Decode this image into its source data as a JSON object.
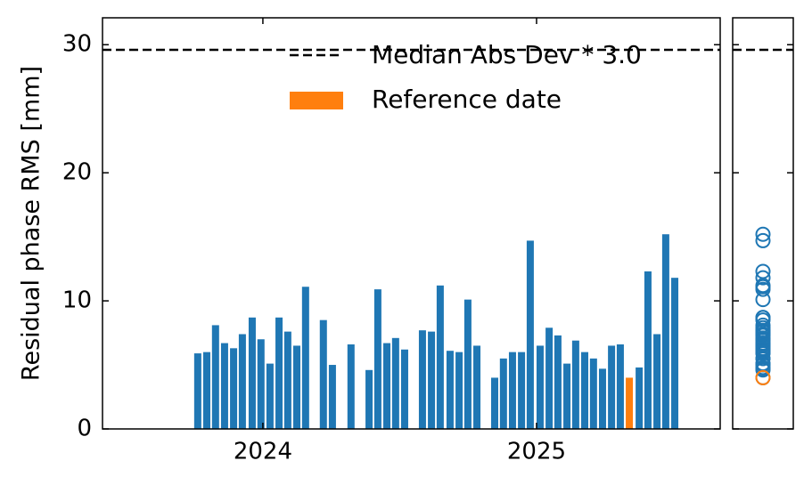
{
  "chart_data": {
    "type": "bar",
    "y_label": "Residual phase RMS [mm]",
    "xlim": [
      2023.414,
      2025.671
    ],
    "xticks": [
      2024,
      2025
    ],
    "ylim": [
      0,
      32.1
    ],
    "yticks": [
      0,
      10,
      20,
      30
    ],
    "bars": {
      "color": "#1f77b4",
      "x": [
        2023.762,
        2023.795,
        2023.827,
        2023.86,
        2023.893,
        2023.925,
        2023.961,
        2023.993,
        2024.026,
        2024.059,
        2024.091,
        2024.124,
        2024.156,
        2024.221,
        2024.254,
        2024.322,
        2024.388,
        2024.42,
        2024.453,
        2024.485,
        2024.518,
        2024.583,
        2024.616,
        2024.648,
        2024.684,
        2024.717,
        2024.749,
        2024.782,
        2024.847,
        2024.879,
        2024.912,
        2024.945,
        2024.977,
        2025.013,
        2025.046,
        2025.078,
        2025.111,
        2025.143,
        2025.176,
        2025.208,
        2025.241,
        2025.274,
        2025.306,
        2025.375,
        2025.407,
        2025.44,
        2025.472,
        2025.505
      ],
      "values": [
        5.9,
        6.0,
        8.1,
        6.7,
        6.3,
        7.4,
        8.7,
        7.0,
        5.1,
        8.7,
        7.6,
        6.5,
        11.1,
        8.5,
        5.0,
        6.6,
        4.6,
        10.9,
        6.7,
        7.1,
        6.2,
        7.7,
        7.6,
        11.2,
        6.1,
        6.0,
        10.1,
        6.5,
        4.0,
        5.5,
        6.0,
        6.0,
        14.7,
        6.5,
        7.9,
        7.3,
        5.1,
        6.9,
        6.0,
        5.5,
        4.7,
        6.5,
        6.6,
        4.8,
        12.3,
        7.4,
        15.2,
        11.8
      ]
    },
    "reference": {
      "name": "Reference date",
      "color": "#ff7f0e",
      "x": 2025.339,
      "value": 4.0
    },
    "threshold": {
      "name": "Median Abs Dev * 3.0",
      "value": 29.6,
      "color": "#000000"
    }
  }
}
